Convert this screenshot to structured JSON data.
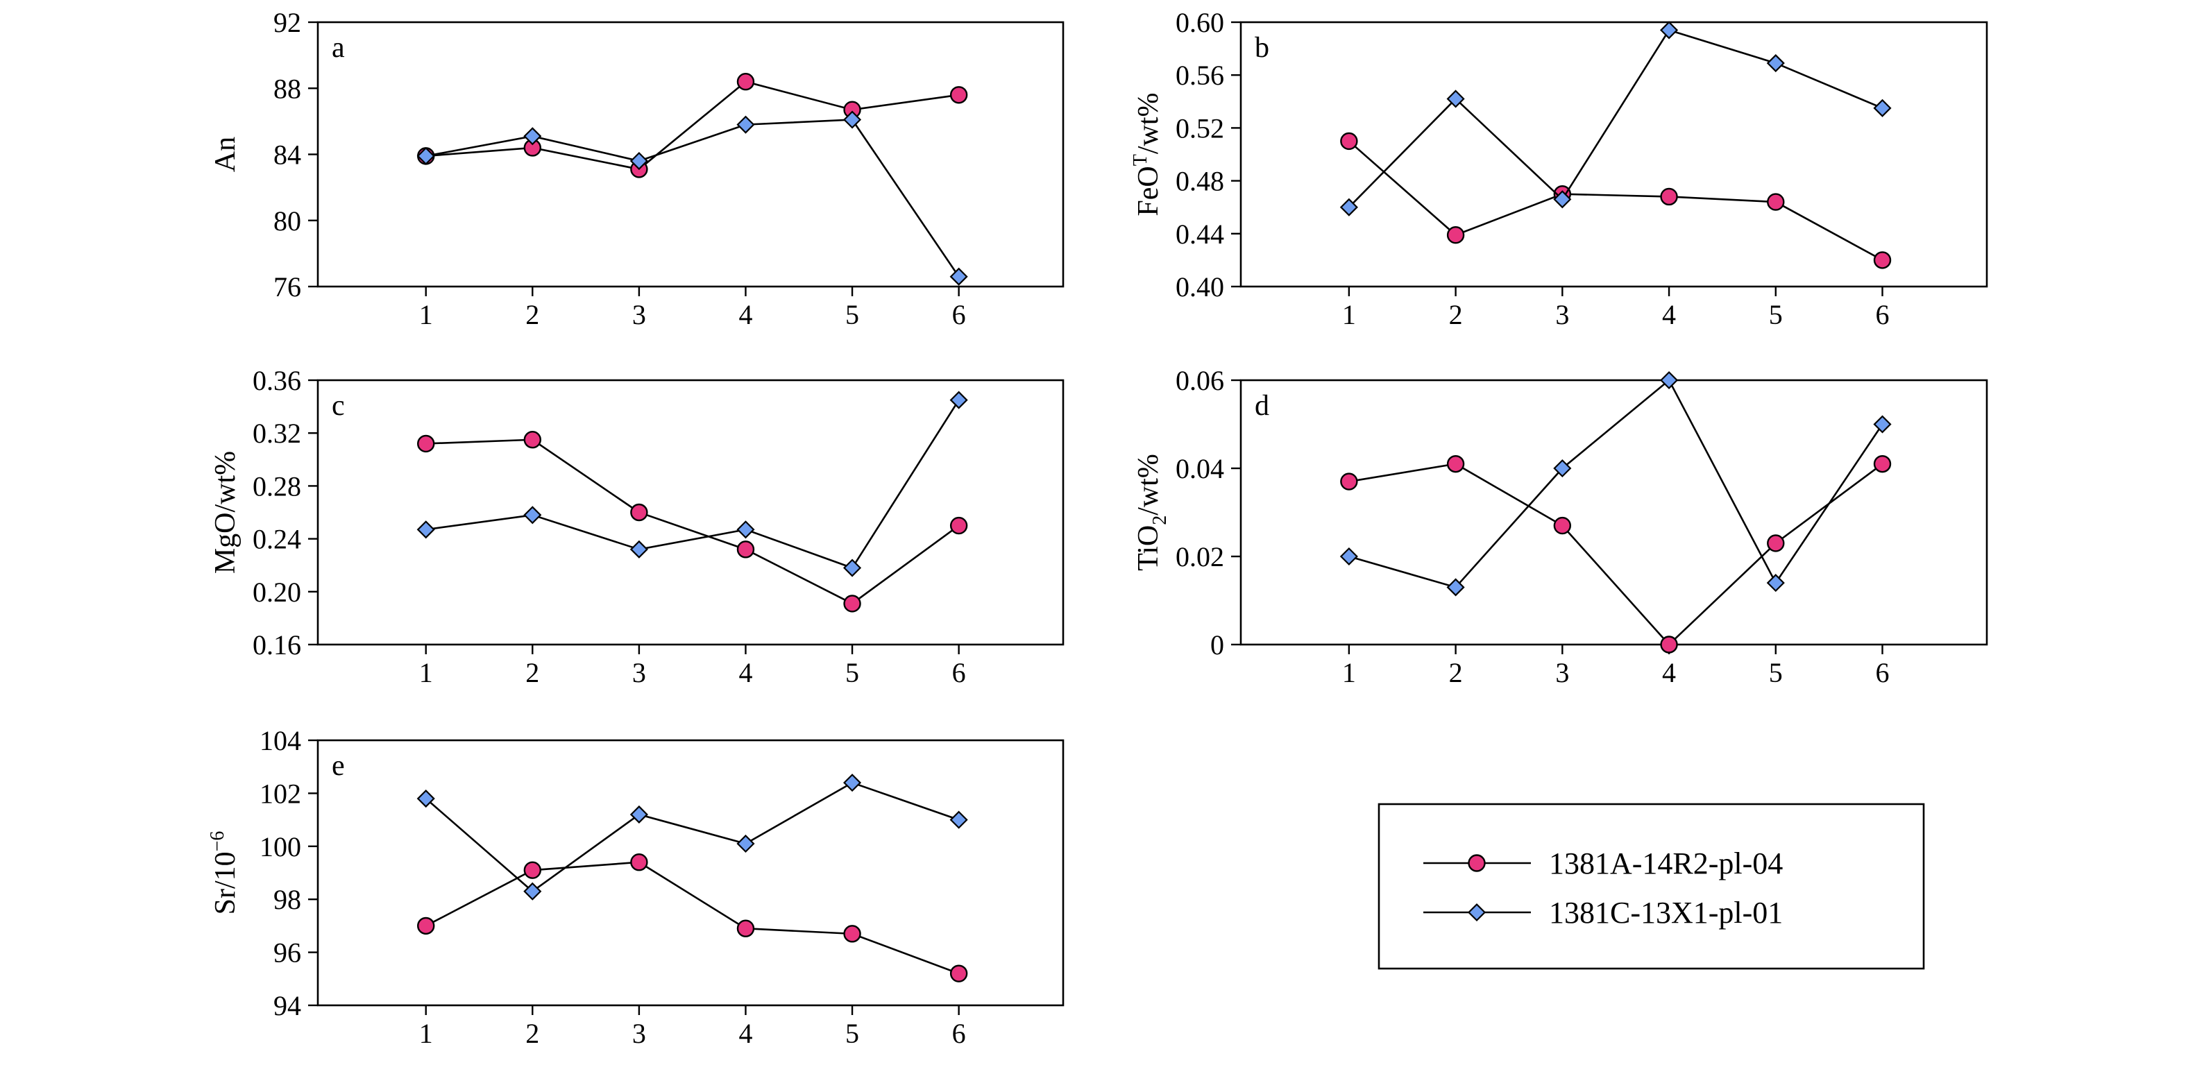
{
  "colors": {
    "series_a": "#e8357f",
    "series_b": "#6f9ef0",
    "stroke": "#000000"
  },
  "legend": {
    "placement": "bottom-right",
    "items": [
      {
        "label": "1381A-14R2-pl-04",
        "marker": "circle"
      },
      {
        "label": "1381C-13X1-pl-01",
        "marker": "diamond"
      }
    ]
  },
  "chart_data": [
    {
      "panel": "a",
      "type": "line",
      "ylabel_main": "An",
      "ylabel_sup": "",
      "ylabel_sub": "",
      "ylabel_rest": "",
      "x": [
        1,
        2,
        3,
        4,
        5,
        6
      ],
      "ylim": [
        76,
        92
      ],
      "yticks": [
        76,
        80,
        84,
        88,
        92
      ],
      "ytick_labels": [
        "76",
        "80",
        "84",
        "88",
        "92"
      ],
      "series": [
        {
          "name": "1381A-14R2-pl-04",
          "values": [
            83.9,
            84.4,
            83.1,
            88.4,
            86.7,
            87.6
          ]
        },
        {
          "name": "1381C-13X1-pl-01",
          "values": [
            83.9,
            85.1,
            83.6,
            85.8,
            86.1,
            76.6
          ]
        }
      ]
    },
    {
      "panel": "b",
      "type": "line",
      "ylabel_main": "FeO",
      "ylabel_sup": "T",
      "ylabel_sub": "",
      "ylabel_rest": "/wt%",
      "x": [
        1,
        2,
        3,
        4,
        5,
        6
      ],
      "ylim": [
        0.4,
        0.6
      ],
      "yticks": [
        0.4,
        0.44,
        0.48,
        0.52,
        0.56,
        0.6
      ],
      "ytick_labels": [
        "0.40",
        "0.44",
        "0.48",
        "0.52",
        "0.56",
        "0.60"
      ],
      "series": [
        {
          "name": "1381A-14R2-pl-04",
          "values": [
            0.51,
            0.439,
            0.47,
            0.468,
            0.464,
            0.42
          ]
        },
        {
          "name": "1381C-13X1-pl-01",
          "values": [
            0.46,
            0.542,
            0.466,
            0.594,
            0.569,
            0.535
          ]
        }
      ]
    },
    {
      "panel": "c",
      "type": "line",
      "ylabel_main": "MgO",
      "ylabel_sup": "",
      "ylabel_sub": "",
      "ylabel_rest": "/wt%",
      "x": [
        1,
        2,
        3,
        4,
        5,
        6
      ],
      "ylim": [
        0.16,
        0.36
      ],
      "yticks": [
        0.16,
        0.2,
        0.24,
        0.28,
        0.32,
        0.36
      ],
      "ytick_labels": [
        "0.16",
        "0.20",
        "0.24",
        "0.28",
        "0.32",
        "0.36"
      ],
      "series": [
        {
          "name": "1381A-14R2-pl-04",
          "values": [
            0.312,
            0.315,
            0.26,
            0.232,
            0.191,
            0.25
          ]
        },
        {
          "name": "1381C-13X1-pl-01",
          "values": [
            0.247,
            0.258,
            0.232,
            0.247,
            0.218,
            0.345
          ]
        }
      ]
    },
    {
      "panel": "d",
      "type": "line",
      "ylabel_main": "TiO",
      "ylabel_sup": "",
      "ylabel_sub": "2",
      "ylabel_rest": "/wt%",
      "x": [
        1,
        2,
        3,
        4,
        5,
        6
      ],
      "ylim": [
        0,
        0.06
      ],
      "yticks": [
        0,
        0.02,
        0.04,
        0.06
      ],
      "ytick_labels": [
        "0",
        "0.02",
        "0.04",
        "0.06"
      ],
      "series": [
        {
          "name": "1381A-14R2-pl-04",
          "values": [
            0.037,
            0.041,
            0.027,
            0.0,
            0.023,
            0.041
          ]
        },
        {
          "name": "1381C-13X1-pl-01",
          "values": [
            0.02,
            0.013,
            0.04,
            0.06,
            0.014,
            0.05
          ]
        }
      ]
    },
    {
      "panel": "e",
      "type": "line",
      "ylabel_main": "Sr/10",
      "ylabel_sup": "−6",
      "ylabel_sub": "",
      "ylabel_rest": "",
      "x": [
        1,
        2,
        3,
        4,
        5,
        6
      ],
      "ylim": [
        94,
        104
      ],
      "yticks": [
        94,
        96,
        98,
        100,
        102,
        104
      ],
      "ytick_labels": [
        "94",
        "96",
        "98",
        "100",
        "102",
        "104"
      ],
      "series": [
        {
          "name": "1381A-14R2-pl-04",
          "values": [
            97.0,
            99.1,
            99.4,
            96.9,
            96.7,
            95.2
          ]
        },
        {
          "name": "1381C-13X1-pl-01",
          "values": [
            101.8,
            98.3,
            101.2,
            100.1,
            102.4,
            101.0
          ]
        }
      ]
    }
  ]
}
